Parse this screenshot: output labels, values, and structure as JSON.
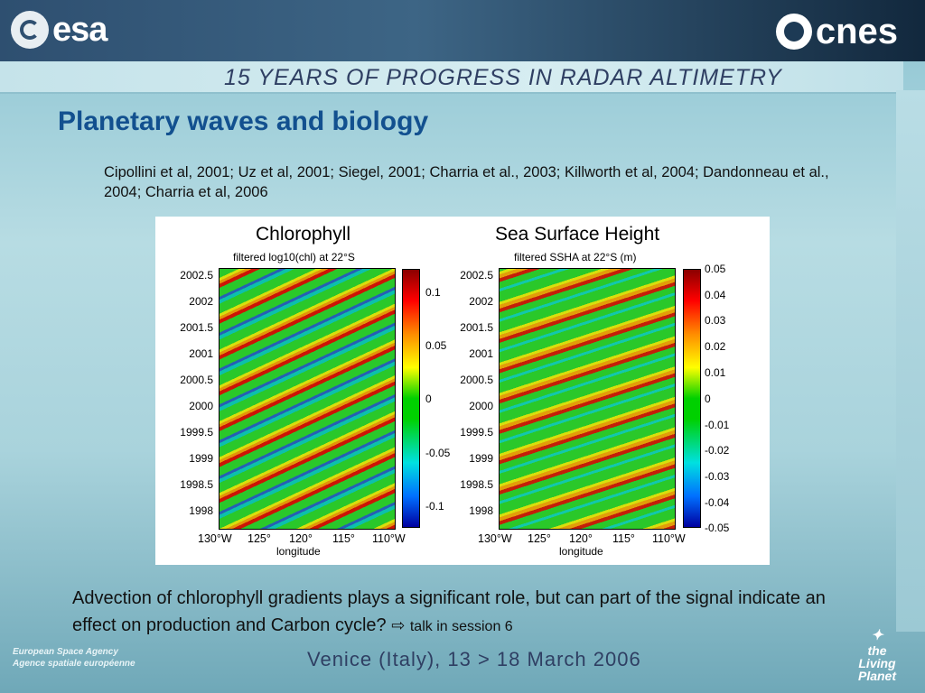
{
  "header": {
    "left_logo": "esa",
    "right_logo": "cnes",
    "banner": "15 YEARS OF PROGRESS IN RADAR ALTIMETRY"
  },
  "slide": {
    "title": "Planetary waves and biology",
    "references": "Cipollini et al, 2001; Uz et al, 2001; Siegel, 2001; Charria et al., 2003; Killworth et al, 2004; Dandonneau et al., 2004; Charria et al, 2006"
  },
  "figure": {
    "left": {
      "label": "Chlorophyll",
      "subtitle": "filtered log10(chl) at 22°S",
      "yticks": [
        "2002.5",
        "2002",
        "2001.5",
        "2001",
        "2000.5",
        "2000",
        "1999.5",
        "1999",
        "1998.5",
        "1998"
      ],
      "xticks": [
        "130°W",
        "125°",
        "120°",
        "115°",
        "110°W"
      ],
      "xlabel": "longitude",
      "colorbar": [
        "0.1",
        "0.05",
        "0",
        "-0.05",
        "-0.1"
      ]
    },
    "right": {
      "label": "Sea Surface Height",
      "subtitle": "filtered SSHA at 22°S (m)",
      "yticks": [
        "2002.5",
        "2002",
        "2001.5",
        "2001",
        "2000.5",
        "2000",
        "1999.5",
        "1999",
        "1998.5",
        "1998"
      ],
      "xticks": [
        "130°W",
        "125°",
        "120°",
        "115°",
        "110°W"
      ],
      "xlabel": "longitude",
      "colorbar": [
        "0.05",
        "0.04",
        "0.03",
        "0.02",
        "0.01",
        "0",
        "-0.01",
        "-0.02",
        "-0.03",
        "-0.04",
        "-0.05"
      ]
    }
  },
  "body": {
    "advection": "Advection of chlorophyll gradients plays a significant role, but can part of the signal indicate an effect on production and Carbon cycle?",
    "arrow_icon": "⇨",
    "talk": "talk in session 6"
  },
  "footer": {
    "agency_en": "European Space Agency",
    "agency_fr": "Agence spatiale européenne",
    "venue": "Venice (Italy), 13 > 18 March 2006",
    "living_planet_1": "the",
    "living_planet_2": "Living Planet"
  }
}
